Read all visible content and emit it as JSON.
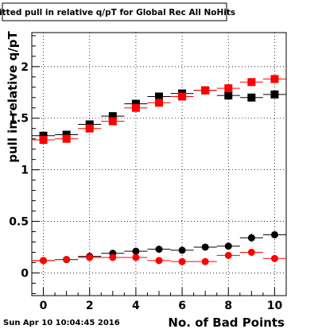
{
  "chart_data": {
    "type": "scatter",
    "title": "Fitted pull in relative q/pT for Global Rec All NoHits",
    "xlabel": "No. of Bad Points",
    "ylabel": "pull in relative q/pT",
    "xlim": [
      -0.5,
      10.5
    ],
    "ylim": [
      -0.22,
      2.33
    ],
    "x_ticks": [
      0,
      2,
      4,
      6,
      8,
      10
    ],
    "y_ticks": [
      0,
      0.5,
      1,
      1.5,
      2
    ],
    "x_tick_labels": [
      "0",
      "2",
      "4",
      "6",
      "8",
      "10"
    ],
    "y_tick_labels": [
      "0",
      "0.5",
      "1",
      "1.5",
      "2"
    ],
    "grid": true,
    "x": [
      0,
      1,
      2,
      3,
      4,
      5,
      6,
      7,
      8,
      9,
      10
    ],
    "series": [
      {
        "marker": "square",
        "color": "#000000",
        "values": [
          1.33,
          1.34,
          1.44,
          1.52,
          1.64,
          1.71,
          1.74,
          1.77,
          1.72,
          1.7,
          1.73
        ],
        "errors": [
          0.03,
          0.02,
          0.02,
          0.02,
          0.02,
          0.02,
          0.02,
          0.02,
          0.03,
          0.04,
          0.03
        ]
      },
      {
        "marker": "square",
        "color": "#ff0000",
        "values": [
          1.29,
          1.3,
          1.4,
          1.47,
          1.6,
          1.65,
          1.71,
          1.77,
          1.79,
          1.85,
          1.88
        ],
        "errors": [
          0.02,
          0.02,
          0.02,
          0.02,
          0.02,
          0.02,
          0.02,
          0.02,
          0.03,
          0.03,
          0.03
        ]
      },
      {
        "marker": "circle",
        "color": "#000000",
        "values": [
          0.12,
          0.13,
          0.16,
          0.19,
          0.21,
          0.23,
          0.22,
          0.25,
          0.26,
          0.34,
          0.37
        ],
        "errors": [
          0.01,
          0.01,
          0.01,
          0.01,
          0.02,
          0.02,
          0.02,
          0.02,
          0.03,
          0.04,
          0.03
        ]
      },
      {
        "marker": "circle",
        "color": "#ff0000",
        "values": [
          0.12,
          0.13,
          0.15,
          0.15,
          0.15,
          0.12,
          0.11,
          0.11,
          0.17,
          0.2,
          0.14
        ],
        "errors": [
          0.01,
          0.01,
          0.01,
          0.01,
          0.01,
          0.01,
          0.01,
          0.01,
          0.02,
          0.03,
          0.02
        ]
      }
    ]
  },
  "footer": {
    "timestamp": "Sun Apr 10 10:04:45 2016"
  }
}
